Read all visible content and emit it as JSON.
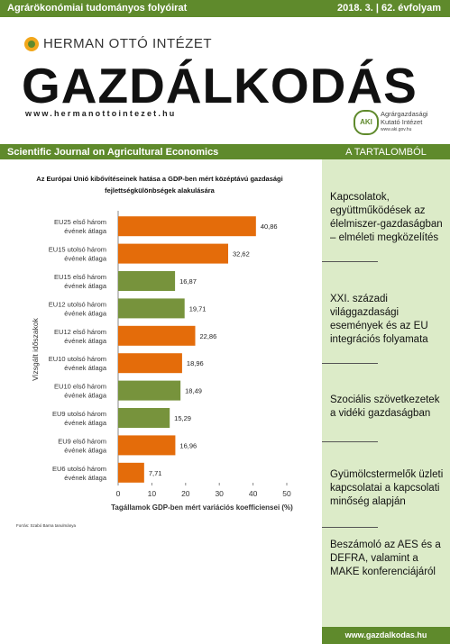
{
  "header": {
    "tagline": "Agrárökonómiai tudományos folyóirat",
    "issue": "2018. 3. | 62. évfolyam",
    "publisher": "HERMAN OTTÓ INTÉZET",
    "journal": "GAZDÁLKODÁS",
    "website": "www.hermanottointezet.hu",
    "partner_logo": "AKI",
    "partner": [
      "Agrárgazdasági",
      "Kutató Intézet",
      "www.aki.gov.hu"
    ],
    "subtitle": "Scientific Journal on Agricultural Economics"
  },
  "contents": {
    "heading": "A TARTALOMBÓL",
    "items": [
      "Kapcsolatok, együttműködések az élelmiszer-gazdaságban – elméleti megközelítés",
      "XXI. századi világgazdasági események és az EU integrációs folyamata",
      "Szociális szövetkezetek a vidéki gazdaságban",
      "Gyümölcstermelők üzleti kapcsolatai a kapcsolati minőség alapján",
      "Beszámoló az AES és a DEFRA, valamint a MAKE konferenciájáról"
    ],
    "footer": "www.gazdalkodas.hu"
  },
  "chart_data": {
    "type": "bar",
    "orientation": "horizontal",
    "title": "Az Európai Unió kibővítéseinek hatása a GDP-ben mért középtávú gazdasági fejlettségkülönbségek alakulására",
    "x_label": "Tagállamok GDP-ben mért variációs koefficiensei (%)",
    "y_label": "Vizsgált időszakok",
    "source": "Forrás: Szabó Barna tanulmánya",
    "categories": [
      [
        "EU25 első három",
        "évének átlaga"
      ],
      [
        "EU15 utolsó három",
        "évének átlaga"
      ],
      [
        "EU15 első három",
        "évének átlaga"
      ],
      [
        "EU12 utolsó három",
        "évének átlaga"
      ],
      [
        "EU12 első három",
        "évének átlaga"
      ],
      [
        "EU10 utolsó három",
        "évének átlaga"
      ],
      [
        "EU10 első három",
        "évének átlaga"
      ],
      [
        "EU9 utolsó három",
        "évének átlaga"
      ],
      [
        "EU9 első három",
        "évének átlaga"
      ],
      [
        "EU6 utolsó három",
        "évének átlaga"
      ]
    ],
    "values": [
      40.86,
      32.62,
      16.87,
      19.71,
      22.86,
      18.96,
      18.49,
      15.29,
      16.96,
      7.71
    ],
    "value_labels": [
      "40,86",
      "32,62",
      "16,87",
      "19,71",
      "22,86",
      "18,96",
      "18,49",
      "15,29",
      "16,96",
      "7,71"
    ],
    "colors": [
      "#e46c0a",
      "#e46c0a",
      "#77933c",
      "#77933c",
      "#e46c0a",
      "#e46c0a",
      "#77933c",
      "#77933c",
      "#e46c0a",
      "#e46c0a"
    ],
    "xlim": [
      0,
      50
    ],
    "xticks": [
      0,
      10,
      20,
      30,
      40,
      50
    ]
  }
}
